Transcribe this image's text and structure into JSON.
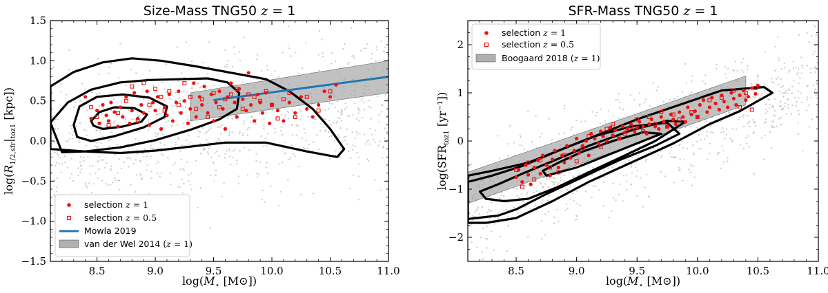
{
  "chart_data": [
    {
      "type": "scatter",
      "panel": "left",
      "title": "Size-Mass TNG50 z = 1",
      "title_parts": {
        "lead": "Size-Mass TNG50 ",
        "var": "z",
        "tail": " = 1"
      },
      "xlabel": "log(M⋆ [M⊙])",
      "xlabel_parts": {
        "lead": "log(",
        "var": "M",
        "sub": "⋆",
        "tail": " [M⊙])"
      },
      "ylabel": "log(R1/2,sfr|toz1 [kpc])",
      "ylabel_parts": {
        "lead": "log(",
        "var": "R",
        "sub": "1/2,sfr",
        "bar": "|",
        "sub2": "toz1",
        "tail": " [kpc])"
      },
      "xlim": [
        8.1,
        11.0
      ],
      "ylim": [
        -1.5,
        1.5
      ],
      "xticks": [
        "8.5",
        "9.0",
        "9.5",
        "10.0",
        "10.5",
        "11.0"
      ],
      "xtick_values": [
        8.5,
        9.0,
        9.5,
        10.0,
        10.5,
        11.0
      ],
      "yticks": [
        "−1.5",
        "−1.0",
        "−0.5",
        "0.0",
        "0.5",
        "1.0",
        "1.5"
      ],
      "ytick_values": [
        -1.5,
        -1.0,
        -0.5,
        0.0,
        0.5,
        1.0,
        1.5
      ],
      "grid": false,
      "legend_position": "lower-left",
      "legend": [
        {
          "label_lead": "selection ",
          "label_var": "z",
          "label_tail": " = 1",
          "marker": "filled-circle",
          "color": "#ee1111"
        },
        {
          "label_lead": "selection ",
          "label_var": "z",
          "label_tail": " = 0.5",
          "marker": "open-square",
          "color": "#ee1111"
        },
        {
          "label_lead": "Mowla 2019",
          "label_var": "",
          "label_tail": "",
          "marker": "line",
          "color": "#1f77b4"
        },
        {
          "label_lead": "van der Wel 2014 (",
          "label_var": "z",
          "label_tail": " = 1)",
          "marker": "gray-band",
          "color": "#b0b0b0"
        }
      ],
      "relation_line": {
        "name": "Mowla 2019",
        "x": [
          9.5,
          11.0
        ],
        "y": [
          0.51,
          0.8
        ],
        "color": "#1f77b4"
      },
      "band": {
        "name": "van der Wel 2014 (z = 1)",
        "x": [
          9.3,
          11.0
        ],
        "lower": [
          0.25,
          0.6
        ],
        "upper": [
          0.6,
          1.0
        ]
      },
      "contours": [
        [
          [
            8.1,
            0.68
          ],
          [
            8.3,
            0.86
          ],
          [
            8.55,
            0.98
          ],
          [
            8.8,
            1.03
          ],
          [
            9.05,
            1.0
          ],
          [
            9.35,
            0.93
          ],
          [
            9.65,
            0.85
          ],
          [
            9.95,
            0.77
          ],
          [
            10.15,
            0.62
          ],
          [
            10.35,
            0.4
          ],
          [
            10.5,
            0.15
          ],
          [
            10.62,
            -0.1
          ],
          [
            10.56,
            -0.2
          ],
          [
            10.3,
            -0.13
          ],
          [
            9.95,
            -0.02
          ],
          [
            9.6,
            -0.02
          ],
          [
            9.3,
            -0.07
          ],
          [
            9.0,
            -0.12
          ],
          [
            8.7,
            -0.15
          ],
          [
            8.4,
            -0.13
          ],
          [
            8.1,
            -0.1
          ]
        ],
        [
          [
            8.1,
            0.23
          ],
          [
            8.25,
            0.48
          ],
          [
            8.45,
            0.64
          ],
          [
            8.7,
            0.73
          ],
          [
            8.95,
            0.76
          ],
          [
            9.2,
            0.77
          ],
          [
            9.45,
            0.78
          ],
          [
            9.62,
            0.73
          ],
          [
            9.72,
            0.6
          ],
          [
            9.7,
            0.4
          ],
          [
            9.55,
            0.27
          ],
          [
            9.3,
            0.14
          ],
          [
            9.0,
            0.01
          ],
          [
            8.7,
            -0.08
          ],
          [
            8.4,
            -0.13
          ],
          [
            8.2,
            -0.14
          ]
        ],
        [
          [
            8.3,
            0.2
          ],
          [
            8.35,
            0.43
          ],
          [
            8.5,
            0.55
          ],
          [
            8.72,
            0.58
          ],
          [
            8.95,
            0.54
          ],
          [
            9.1,
            0.43
          ],
          [
            9.08,
            0.3
          ],
          [
            8.9,
            0.17
          ],
          [
            8.65,
            0.06
          ],
          [
            8.45,
            0.0
          ],
          [
            8.33,
            0.05
          ]
        ],
        [
          [
            8.45,
            0.25
          ],
          [
            8.52,
            0.36
          ],
          [
            8.65,
            0.42
          ],
          [
            8.82,
            0.41
          ],
          [
            8.93,
            0.33
          ],
          [
            8.88,
            0.24
          ],
          [
            8.72,
            0.18
          ],
          [
            8.55,
            0.15
          ],
          [
            8.47,
            0.19
          ]
        ]
      ],
      "selection_z1": {
        "x": [
          8.4,
          8.45,
          8.5,
          8.52,
          8.55,
          8.58,
          8.6,
          8.62,
          8.65,
          8.68,
          8.7,
          8.72,
          8.75,
          8.78,
          8.8,
          8.82,
          8.85,
          8.88,
          8.9,
          8.93,
          8.95,
          8.98,
          9.0,
          9.02,
          9.05,
          9.08,
          9.1,
          9.12,
          9.15,
          9.18,
          9.2,
          9.22,
          9.25,
          9.28,
          9.3,
          9.33,
          9.35,
          9.38,
          9.4,
          9.42,
          9.45,
          9.48,
          9.5,
          9.52,
          9.55,
          9.58,
          9.6,
          9.62,
          9.65,
          9.68,
          9.7,
          9.72,
          9.75,
          9.78,
          9.8,
          9.82,
          9.85,
          9.88,
          9.9,
          9.92,
          9.95,
          9.98,
          10.0,
          10.05,
          10.1,
          10.15,
          10.2,
          10.25,
          10.3,
          10.35,
          10.4,
          10.45,
          10.5,
          10.55
        ],
        "y": [
          0.55,
          0.28,
          0.38,
          0.22,
          0.45,
          0.32,
          0.25,
          0.48,
          0.36,
          0.18,
          0.42,
          0.3,
          0.55,
          0.22,
          0.38,
          0.6,
          0.28,
          0.45,
          0.35,
          0.62,
          0.2,
          0.48,
          0.38,
          0.55,
          0.15,
          0.42,
          0.32,
          0.58,
          0.25,
          0.48,
          0.62,
          0.35,
          0.5,
          0.22,
          0.4,
          0.72,
          0.3,
          0.55,
          0.45,
          0.68,
          0.35,
          0.58,
          0.25,
          0.48,
          0.62,
          0.4,
          0.15,
          0.55,
          0.72,
          0.48,
          0.3,
          0.65,
          0.52,
          0.38,
          0.85,
          0.45,
          0.25,
          0.58,
          0.48,
          0.35,
          0.6,
          0.22,
          0.45,
          0.38,
          0.25,
          0.48,
          0.35,
          0.55,
          0.4,
          0.3,
          0.45,
          0.62,
          0.55,
          0.7
        ]
      },
      "selection_z05": {
        "x": [
          8.45,
          8.5,
          8.6,
          8.68,
          8.75,
          8.8,
          8.85,
          8.9,
          8.95,
          9.0,
          9.05,
          9.08,
          9.12,
          9.2,
          9.25,
          9.3,
          9.35,
          9.4,
          9.45,
          9.5,
          9.55,
          9.6,
          9.65,
          9.7,
          9.75,
          9.8,
          9.85,
          9.9,
          9.95,
          10.0,
          10.05,
          10.1,
          10.15,
          10.2,
          10.3,
          10.4,
          10.5
        ],
        "y": [
          0.42,
          0.3,
          0.2,
          0.35,
          0.5,
          0.68,
          0.25,
          0.72,
          0.45,
          0.65,
          0.55,
          0.38,
          0.62,
          0.45,
          0.72,
          0.55,
          0.4,
          0.52,
          0.3,
          0.6,
          0.42,
          0.52,
          0.58,
          0.65,
          0.4,
          0.58,
          0.55,
          0.5,
          0.62,
          0.45,
          0.28,
          0.52,
          0.6,
          0.3,
          0.55,
          0.38,
          0.62
        ]
      }
    },
    {
      "type": "scatter",
      "panel": "right",
      "title": "SFR-Mass TNG50 z = 1",
      "title_parts": {
        "lead": "SFR-Mass TNG50 ",
        "var": "z",
        "tail": " = 1"
      },
      "xlabel": "log(M⋆ [M⊙])",
      "xlabel_parts": {
        "lead": "log(",
        "var": "M",
        "sub": "⋆",
        "tail": " [M⊙])"
      },
      "ylabel": "log(SFRtoz1 [yr⁻¹])",
      "ylabel_parts": {
        "lead": "log(SFR",
        "sub": "toz1",
        "tail": " [yr⁻¹])"
      },
      "xlim": [
        8.1,
        11.0
      ],
      "ylim": [
        -2.5,
        2.5
      ],
      "xticks": [
        "8.5",
        "9.0",
        "9.5",
        "10.0",
        "10.5",
        "11.0"
      ],
      "xtick_values": [
        8.5,
        9.0,
        9.5,
        10.0,
        10.5,
        11.0
      ],
      "yticks": [
        "−2",
        "−1",
        "0",
        "1",
        "2"
      ],
      "ytick_values": [
        -2,
        -1,
        0,
        1,
        2
      ],
      "grid": false,
      "legend_position": "upper-left",
      "legend": [
        {
          "label_lead": "selection ",
          "label_var": "z",
          "label_tail": " = 1",
          "marker": "filled-circle",
          "color": "#ee1111"
        },
        {
          "label_lead": "selection ",
          "label_var": "z",
          "label_tail": " = 0.5",
          "marker": "open-square",
          "color": "#ee1111"
        },
        {
          "label_lead": "Boogaard 2018 (",
          "label_var": "z",
          "label_tail": " = 1)",
          "marker": "gray-band",
          "color": "#b0b0b0"
        }
      ],
      "band": {
        "name": "Boogaard 2018 (z = 1)",
        "x": [
          8.1,
          10.4
        ],
        "lower": [
          -1.3,
          0.75
        ],
        "upper": [
          -0.65,
          1.35
        ]
      },
      "contours": [
        [
          [
            8.1,
            -1.7
          ],
          [
            8.25,
            -1.7
          ],
          [
            8.5,
            -1.6
          ],
          [
            8.8,
            -1.25
          ],
          [
            9.1,
            -0.85
          ],
          [
            9.45,
            -0.45
          ],
          [
            9.8,
            -0.05
          ],
          [
            10.1,
            0.35
          ],
          [
            10.35,
            0.62
          ],
          [
            10.62,
            1.0
          ],
          [
            10.55,
            1.12
          ],
          [
            10.2,
            1.05
          ],
          [
            9.85,
            0.75
          ],
          [
            9.5,
            0.45
          ],
          [
            9.2,
            0.15
          ],
          [
            8.9,
            -0.15
          ],
          [
            8.6,
            -0.45
          ],
          [
            8.3,
            -0.62
          ],
          [
            8.1,
            -0.72
          ]
        ],
        [
          [
            8.1,
            -1.62
          ],
          [
            8.35,
            -1.55
          ],
          [
            8.5,
            -1.42
          ],
          [
            8.75,
            -1.1
          ],
          [
            9.05,
            -0.75
          ],
          [
            9.35,
            -0.4
          ],
          [
            9.65,
            -0.1
          ],
          [
            9.85,
            0.15
          ],
          [
            9.75,
            0.38
          ],
          [
            9.45,
            0.3
          ],
          [
            9.15,
            0.1
          ],
          [
            8.85,
            -0.2
          ],
          [
            8.55,
            -0.52
          ],
          [
            8.3,
            -0.72
          ],
          [
            8.1,
            -0.85
          ]
        ],
        [
          [
            8.4,
            -1.25
          ],
          [
            8.6,
            -1.2
          ],
          [
            8.85,
            -0.95
          ],
          [
            9.1,
            -0.65
          ],
          [
            9.4,
            -0.3
          ],
          [
            9.65,
            0.0
          ],
          [
            9.9,
            0.4
          ],
          [
            9.75,
            0.42
          ],
          [
            9.45,
            0.22
          ],
          [
            9.1,
            -0.1
          ],
          [
            8.8,
            -0.42
          ],
          [
            8.55,
            -0.68
          ],
          [
            8.35,
            -0.9
          ],
          [
            8.2,
            -1.05
          ],
          [
            8.25,
            -1.2
          ]
        ],
        [
          [
            8.75,
            -0.72
          ],
          [
            9.0,
            -0.55
          ],
          [
            9.25,
            -0.3
          ],
          [
            9.5,
            -0.05
          ],
          [
            9.7,
            0.15
          ],
          [
            9.55,
            0.18
          ],
          [
            9.3,
            0.0
          ],
          [
            9.05,
            -0.22
          ],
          [
            8.85,
            -0.45
          ],
          [
            8.72,
            -0.62
          ]
        ]
      ],
      "selection_z1": {
        "x": [
          8.5,
          8.52,
          8.55,
          8.58,
          8.6,
          8.62,
          8.65,
          8.68,
          8.7,
          8.72,
          8.75,
          8.78,
          8.8,
          8.82,
          8.85,
          8.88,
          8.9,
          8.92,
          8.95,
          8.98,
          9.0,
          9.02,
          9.05,
          9.08,
          9.1,
          9.12,
          9.15,
          9.18,
          9.2,
          9.22,
          9.25,
          9.28,
          9.3,
          9.32,
          9.35,
          9.38,
          9.4,
          9.42,
          9.45,
          9.48,
          9.5,
          9.52,
          9.55,
          9.58,
          9.6,
          9.62,
          9.65,
          9.68,
          9.7,
          9.72,
          9.75,
          9.78,
          9.8,
          9.82,
          9.85,
          9.88,
          9.9,
          9.92,
          9.95,
          9.98,
          10.0,
          10.02,
          10.05,
          10.08,
          10.1,
          10.12,
          10.15,
          10.18,
          10.2,
          10.22,
          10.25,
          10.28,
          10.3,
          10.32,
          10.35,
          10.38,
          10.4,
          10.42,
          10.45,
          10.48,
          10.5
        ],
        "y": [
          -0.75,
          -0.6,
          -0.85,
          -0.5,
          -0.7,
          -0.9,
          -0.55,
          -0.4,
          -0.68,
          -0.3,
          -0.5,
          -0.72,
          -0.38,
          -0.2,
          -0.55,
          -0.3,
          -0.45,
          -0.1,
          -0.35,
          -0.2,
          0.05,
          -0.25,
          -0.1,
          0.0,
          -0.3,
          0.15,
          0.05,
          -0.05,
          0.2,
          0.1,
          0.0,
          0.28,
          0.12,
          0.22,
          0.05,
          0.3,
          0.18,
          0.25,
          0.35,
          0.2,
          0.28,
          0.4,
          0.3,
          0.15,
          0.35,
          0.45,
          0.3,
          0.25,
          0.5,
          0.4,
          0.3,
          0.55,
          0.45,
          0.35,
          0.6,
          0.5,
          0.4,
          0.7,
          0.55,
          0.62,
          0.5,
          0.75,
          0.85,
          0.6,
          0.7,
          0.9,
          0.78,
          0.65,
          0.95,
          0.82,
          0.7,
          1.0,
          0.88,
          0.75,
          0.95,
          1.05,
          0.85,
          0.92,
          1.1,
          0.98,
          1.15
        ]
      },
      "selection_z05": {
        "x": [
          8.5,
          8.55,
          8.6,
          8.65,
          8.7,
          8.78,
          8.85,
          8.9,
          9.0,
          9.05,
          9.1,
          9.2,
          9.25,
          9.3,
          9.35,
          9.4,
          9.45,
          9.5,
          9.55,
          9.6,
          9.65,
          9.7,
          9.75,
          9.8,
          9.85,
          9.95,
          10.0,
          10.1,
          10.2,
          10.3,
          10.35,
          10.4,
          10.45,
          10.48
        ],
        "y": [
          -0.6,
          -0.95,
          -0.45,
          -0.8,
          -0.4,
          -0.55,
          -0.65,
          -0.3,
          -0.42,
          -0.15,
          0.1,
          -0.12,
          0.25,
          0.35,
          0.05,
          0.15,
          0.3,
          0.45,
          0.2,
          0.5,
          0.35,
          0.6,
          0.3,
          0.55,
          0.45,
          0.6,
          0.5,
          0.85,
          0.9,
          1.05,
          0.7,
          1.0,
          0.65,
          1.1
        ]
      }
    }
  ]
}
